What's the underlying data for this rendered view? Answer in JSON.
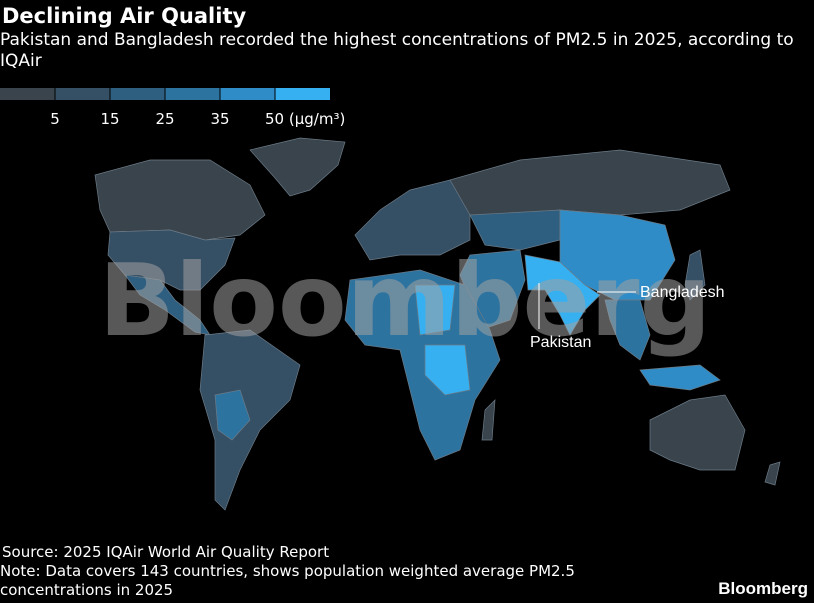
{
  "header": {
    "title": "Declining Air Quality",
    "subtitle": "Pakistan and Bangladesh recorded the highest concentrations of PM2.5 in 2025, according to IQAir"
  },
  "legend": {
    "colors": [
      "#39444d",
      "#354f65",
      "#2f5f80",
      "#2d73a0",
      "#2f8cc6",
      "#36b0f0"
    ],
    "ticks": [
      5,
      15,
      25,
      35,
      {
        "value": 50,
        "label": "50 (µg/m³)"
      }
    ]
  },
  "annotations": [
    "Bangladesh",
    "Pakistan"
  ],
  "watermark": "Bloomberg",
  "footer": {
    "source": "Source: 2025 IQAir World Air Quality Report",
    "note": "Note: Data covers 143 countries, shows population weighted average PM2.5 concentrations in 2025",
    "logo": "Bloomberg"
  }
}
